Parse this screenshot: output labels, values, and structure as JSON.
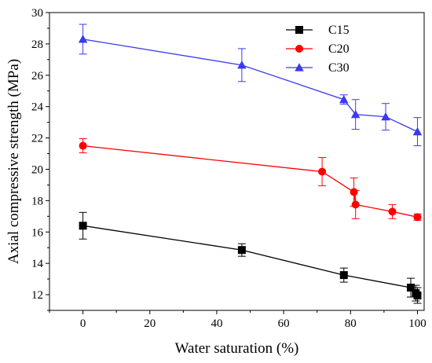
{
  "chart_data": {
    "type": "line",
    "xlabel": "Water saturation (%)",
    "ylabel": "Axial compressive strength (MPa)",
    "xlim": [
      -10,
      102
    ],
    "ylim": [
      11,
      30
    ],
    "xticks": [
      0,
      20,
      40,
      60,
      80,
      100
    ],
    "yticks": [
      12,
      14,
      16,
      18,
      20,
      22,
      24,
      26,
      28,
      30
    ],
    "xtick_labels": [
      "0",
      "20",
      "40",
      "60",
      "80",
      "100"
    ],
    "ytick_labels": [
      "12",
      "14",
      "16",
      "18",
      "20",
      "22",
      "24",
      "26",
      "28",
      "30"
    ],
    "grid": false,
    "legend_position": "top-right",
    "series": [
      {
        "name": "C15",
        "color": "#000000",
        "marker": "square",
        "x": [
          0,
          47.5,
          78,
          98,
          99.5,
          100
        ],
        "y": [
          16.4,
          14.85,
          13.25,
          12.45,
          12.1,
          11.95
        ],
        "err": [
          0.85,
          0.4,
          0.45,
          0.6,
          0.5,
          0.5
        ]
      },
      {
        "name": "C20",
        "color": "#ff0000",
        "marker": "circle",
        "x": [
          0,
          71.5,
          81,
          81.5,
          92.5,
          100
        ],
        "y": [
          21.5,
          19.85,
          18.55,
          17.75,
          17.3,
          16.95
        ],
        "err": [
          0.45,
          0.9,
          0.9,
          0.9,
          0.45,
          0.2
        ]
      },
      {
        "name": "C30",
        "color": "#3a3af0",
        "marker": "triangle",
        "x": [
          0,
          47.5,
          78,
          81.5,
          90.5,
          100
        ],
        "y": [
          28.3,
          26.65,
          24.45,
          23.5,
          23.35,
          22.4
        ],
        "err": [
          0.95,
          1.05,
          0.3,
          0.95,
          0.85,
          0.9
        ]
      }
    ]
  }
}
